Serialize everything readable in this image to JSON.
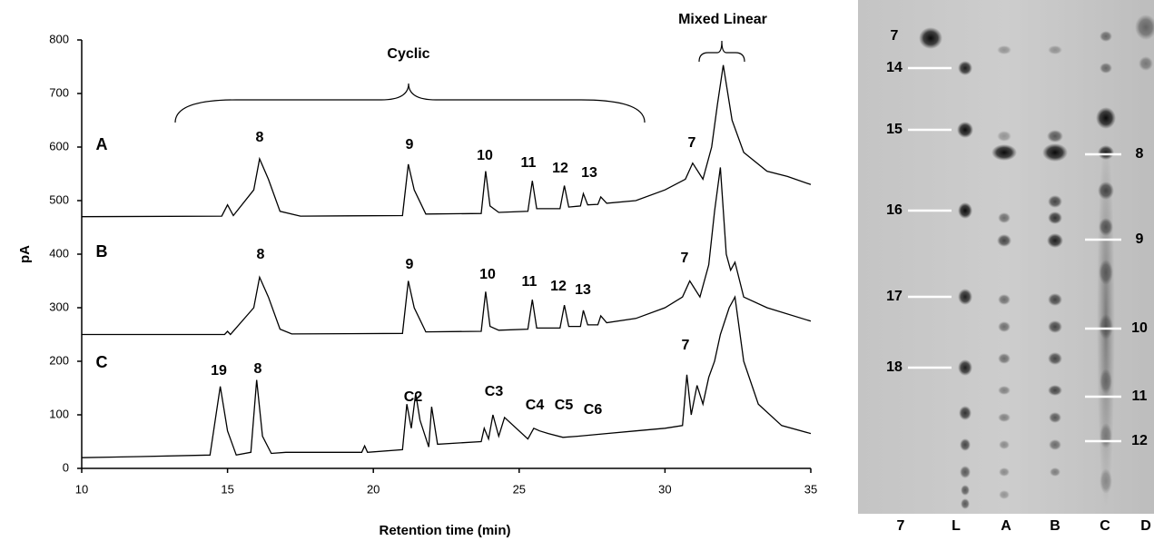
{
  "chart_data": {
    "type": "line",
    "xlabel": "Retention time (min)",
    "ylabel": "pA",
    "xlim": [
      10,
      35
    ],
    "xticks": [
      10,
      15,
      20,
      25,
      30,
      35
    ],
    "ylim": [
      0,
      800
    ],
    "yticks": [
      0,
      100,
      200,
      300,
      400,
      500,
      600,
      700,
      800
    ],
    "grid": false,
    "annotations": [
      "Cyclic",
      "Mixed Linear"
    ],
    "series": [
      {
        "name": "A",
        "color": "#000000",
        "peak_labels": [
          "8",
          "9",
          "10",
          "11",
          "12",
          "13",
          "7"
        ],
        "x": [
          10,
          14.8,
          15.0,
          15.2,
          15.9,
          16.1,
          16.4,
          16.8,
          17.5,
          21.0,
          21.2,
          21.4,
          21.8,
          23.7,
          23.85,
          24.0,
          24.3,
          25.3,
          25.45,
          25.6,
          26.4,
          26.55,
          26.7,
          27.1,
          27.2,
          27.35,
          27.7,
          27.8,
          28,
          29,
          30,
          30.7,
          30.95,
          31.3,
          31.6,
          31.8,
          32.0,
          32.3,
          32.7,
          33.5,
          34.2,
          35
        ],
        "values": [
          470,
          471,
          492,
          472,
          520,
          578,
          540,
          480,
          471,
          472,
          568,
          520,
          475,
          476,
          555,
          490,
          478,
          480,
          537,
          485,
          485,
          528,
          488,
          490,
          513,
          492,
          493,
          507,
          495,
          500,
          520,
          540,
          570,
          540,
          600,
          680,
          753,
          650,
          590,
          555,
          545,
          530
        ]
      },
      {
        "name": "B",
        "color": "#000000",
        "peak_labels": [
          "8",
          "9",
          "10",
          "11",
          "12",
          "13",
          "7"
        ],
        "x": [
          10,
          14.9,
          15,
          15.1,
          15.9,
          16.1,
          16.4,
          16.8,
          17.2,
          21.0,
          21.2,
          21.4,
          21.8,
          23.7,
          23.85,
          24.0,
          24.3,
          25.3,
          25.45,
          25.6,
          26.4,
          26.55,
          26.7,
          27.1,
          27.2,
          27.35,
          27.7,
          27.8,
          28,
          29,
          30,
          30.6,
          30.85,
          31.2,
          31.5,
          31.7,
          31.9,
          32.1,
          32.25,
          32.4,
          32.7,
          33.5,
          35
        ],
        "values": [
          250,
          250,
          256,
          250,
          300,
          357,
          320,
          260,
          251,
          252,
          350,
          300,
          255,
          256,
          330,
          265,
          258,
          260,
          315,
          262,
          262,
          305,
          265,
          265,
          295,
          268,
          268,
          285,
          272,
          280,
          300,
          320,
          350,
          320,
          380,
          480,
          562,
          400,
          370,
          385,
          320,
          300,
          275
        ]
      },
      {
        "name": "C",
        "color": "#000000",
        "peak_labels": [
          "19",
          "8",
          "C2",
          "C3",
          "C4",
          "C5",
          "C6",
          "7"
        ],
        "x": [
          10,
          12,
          14.4,
          14.75,
          15.0,
          15.3,
          15.8,
          16.0,
          16.2,
          16.5,
          17,
          19.6,
          19.7,
          19.8,
          21,
          21.15,
          21.3,
          21.45,
          21.6,
          21.9,
          22.0,
          22.2,
          23.7,
          23.8,
          23.95,
          24.1,
          24.3,
          24.5,
          25.3,
          25.5,
          25.7,
          26,
          26.5,
          27,
          28,
          29,
          30,
          30.6,
          30.75,
          30.9,
          31.1,
          31.3,
          31.5,
          31.7,
          31.9,
          32.2,
          32.4,
          32.7,
          33.2,
          34,
          35
        ],
        "values": [
          20,
          22,
          25,
          153,
          70,
          25,
          30,
          165,
          60,
          28,
          30,
          30,
          42,
          30,
          35,
          120,
          75,
          140,
          90,
          40,
          115,
          45,
          50,
          75,
          55,
          100,
          60,
          95,
          55,
          75,
          70,
          65,
          58,
          60,
          65,
          70,
          75,
          80,
          175,
          100,
          155,
          120,
          170,
          200,
          250,
          300,
          320,
          200,
          120,
          80,
          65
        ]
      }
    ]
  },
  "tlc_plate": {
    "lanes": [
      "7",
      "L",
      "A",
      "B",
      "C",
      "D"
    ],
    "left_labels": [
      "7",
      "14",
      "15",
      "16",
      "17",
      "18"
    ],
    "right_labels": [
      "8",
      "9",
      "10",
      "11",
      "12"
    ]
  }
}
